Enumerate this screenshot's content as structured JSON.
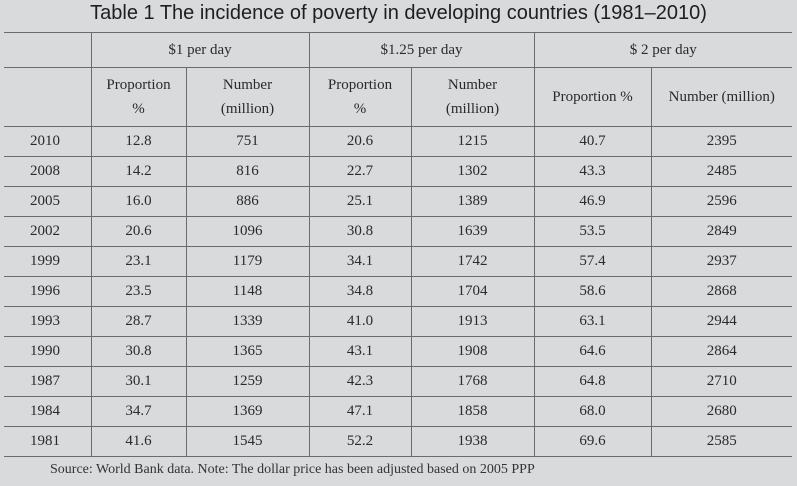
{
  "title": "Table 1 The incidence of poverty in developing countries (1981–2010)",
  "groups": [
    "$1 per day",
    "$1.25 per day",
    "$ 2 per day"
  ],
  "subheaders": {
    "g1_prop_l1": "Proportion",
    "g1_prop_l2": "%",
    "g1_num_l1": "Number",
    "g1_num_l2": "(million)",
    "g2_prop_l1": "Proportion",
    "g2_prop_l2": "%",
    "g2_num_l1": "Number",
    "g2_num_l2": "(million)",
    "g3_prop": "Proportion %",
    "g3_num": "Number (million)"
  },
  "rows": [
    [
      "2010",
      "12.8",
      "751",
      "20.6",
      "1215",
      "40.7",
      "2395"
    ],
    [
      "2008",
      "14.2",
      "816",
      "22.7",
      "1302",
      "43.3",
      "2485"
    ],
    [
      "2005",
      "16.0",
      "886",
      "25.1",
      "1389",
      "46.9",
      "2596"
    ],
    [
      "2002",
      "20.6",
      "1096",
      "30.8",
      "1639",
      "53.5",
      "2849"
    ],
    [
      "1999",
      "23.1",
      "1179",
      "34.1",
      "1742",
      "57.4",
      "2937"
    ],
    [
      "1996",
      "23.5",
      "1148",
      "34.8",
      "1704",
      "58.6",
      "2868"
    ],
    [
      "1993",
      "28.7",
      "1339",
      "41.0",
      "1913",
      "63.1",
      "2944"
    ],
    [
      "1990",
      "30.8",
      "1365",
      "43.1",
      "1908",
      "64.6",
      "2864"
    ],
    [
      "1987",
      "30.1",
      "1259",
      "42.3",
      "1768",
      "64.8",
      "2710"
    ],
    [
      "1984",
      "34.7",
      "1369",
      "47.1",
      "1858",
      "68.0",
      "2680"
    ],
    [
      "1981",
      "41.6",
      "1545",
      "52.2",
      "1938",
      "69.6",
      "2585"
    ]
  ],
  "source": "Source: World Bank data. Note: The dollar price has been adjusted based on 2005 PPP"
}
